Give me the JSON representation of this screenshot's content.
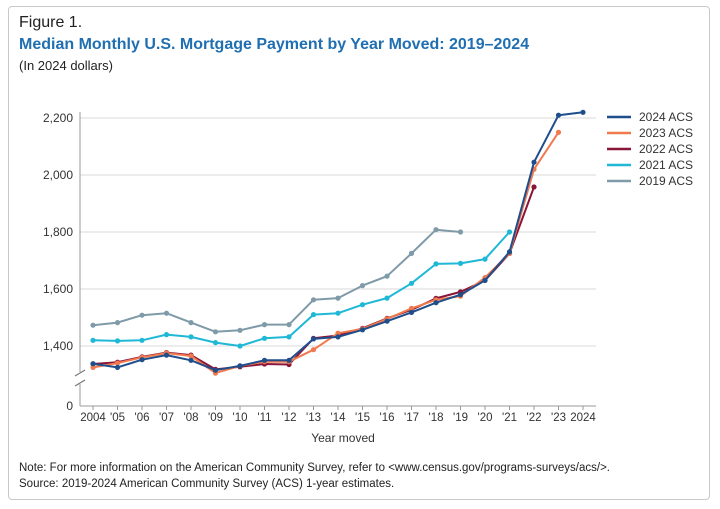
{
  "header": {
    "figure_label": "Figure 1.",
    "title": "Median Monthly U.S. Mortgage Payment by Year Moved: 2019–2024",
    "subtitle": "(In 2024 dollars)"
  },
  "notes": {
    "note": "Note: For more information on the American Community Survey, refer to <www.census.gov/programs-surveys/acs/>.",
    "source": "Source: 2019-2024 American Community Survey (ACS) 1-year estimates."
  },
  "chart_data": {
    "type": "line",
    "title": "Median Monthly U.S. Mortgage Payment by Year Moved: 2019–2024",
    "subtitle": "(In 2024 dollars)",
    "xlabel": "Year moved",
    "ylabel": "",
    "x_ticks": [
      "2004",
      "'05",
      "'06",
      "'07",
      "'08",
      "'09",
      "'10",
      "'11",
      "'12",
      "'13",
      "'14",
      "'15",
      "'16",
      "'17",
      "'18",
      "'19",
      "'20",
      "'21",
      "'22",
      "'23",
      "2024"
    ],
    "x_values": [
      2004,
      2005,
      2006,
      2007,
      2008,
      2009,
      2010,
      2011,
      2012,
      2013,
      2014,
      2015,
      2016,
      2017,
      2018,
      2019,
      2020,
      2021,
      2022,
      2023,
      2024
    ],
    "y_ticks": [
      "0",
      "1,400",
      "1,600",
      "1,800",
      "2,000",
      "2,200"
    ],
    "ylim": [
      1280,
      2230
    ],
    "axis_break": true,
    "grid": true,
    "legend_position": "top-right",
    "series": [
      {
        "name": "2024 ACS",
        "color": "#1f4e8c",
        "x": [
          2004,
          2005,
          2006,
          2007,
          2008,
          2009,
          2010,
          2011,
          2012,
          2013,
          2014,
          2015,
          2016,
          2017,
          2018,
          2019,
          2020,
          2021,
          2022,
          2023,
          2024
        ],
        "values": [
          1338,
          1325,
          1352,
          1368,
          1350,
          1315,
          1330,
          1350,
          1350,
          1425,
          1432,
          1457,
          1487,
          1518,
          1552,
          1580,
          1630,
          1730,
          2045,
          2210,
          2220
        ]
      },
      {
        "name": "2023 ACS",
        "color": "#f07a4e",
        "x": [
          2004,
          2005,
          2006,
          2007,
          2008,
          2009,
          2010,
          2011,
          2012,
          2013,
          2014,
          2015,
          2016,
          2017,
          2018,
          2019,
          2020,
          2021,
          2022,
          2023
        ],
        "values": [
          1325,
          1340,
          1360,
          1375,
          1365,
          1305,
          1330,
          1345,
          1345,
          1387,
          1445,
          1460,
          1495,
          1532,
          1562,
          1575,
          1640,
          1725,
          2020,
          2150
        ]
      },
      {
        "name": "2022 ACS",
        "color": "#8a1538",
        "x": [
          2004,
          2005,
          2006,
          2007,
          2008,
          2009,
          2010,
          2011,
          2012,
          2013,
          2014,
          2015,
          2016,
          2017,
          2018,
          2019,
          2020,
          2021,
          2022
        ],
        "values": [
          1337,
          1343,
          1362,
          1377,
          1368,
          1318,
          1327,
          1337,
          1335,
          1427,
          1437,
          1462,
          1497,
          1527,
          1567,
          1590,
          1630,
          1725,
          1958
        ]
      },
      {
        "name": "2021 ACS",
        "color": "#1fb8d6",
        "x": [
          2004,
          2005,
          2006,
          2007,
          2008,
          2009,
          2010,
          2011,
          2012,
          2013,
          2014,
          2015,
          2016,
          2017,
          2018,
          2019,
          2020,
          2021
        ],
        "values": [
          1420,
          1418,
          1420,
          1440,
          1432,
          1412,
          1400,
          1427,
          1432,
          1510,
          1515,
          1545,
          1568,
          1620,
          1688,
          1690,
          1705,
          1800
        ]
      },
      {
        "name": "2019 ACS",
        "color": "#7f9aa8",
        "x": [
          2004,
          2005,
          2006,
          2007,
          2008,
          2009,
          2010,
          2011,
          2012,
          2013,
          2014,
          2015,
          2016,
          2017,
          2018,
          2019
        ],
        "values": [
          1473,
          1482,
          1508,
          1515,
          1482,
          1450,
          1455,
          1475,
          1475,
          1562,
          1568,
          1612,
          1645,
          1725,
          1808,
          1800
        ]
      }
    ]
  }
}
